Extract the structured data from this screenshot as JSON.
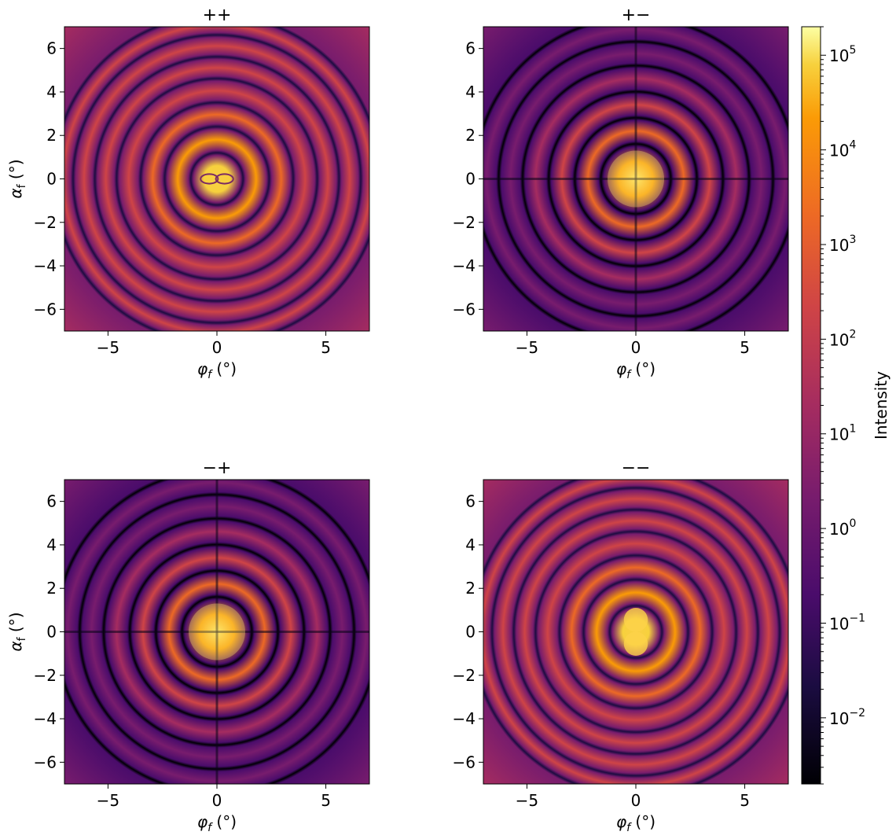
{
  "colors": {
    "background": "#ffffff",
    "axis": "#000000",
    "colormap": "inferno"
  },
  "chart_data": [
    {
      "type": "heatmap",
      "title": "++",
      "xlabel": "φ_f (°)",
      "ylabel": "α_f (°)",
      "xlim": [
        -7,
        7
      ],
      "ylim": [
        -7,
        7
      ],
      "xticks": [
        -5,
        0,
        5
      ],
      "yticks": [
        -6,
        -4,
        -2,
        0,
        2,
        4,
        6
      ],
      "pattern": "concentric-rings",
      "center_minimum": "horizontal-figure-eight",
      "cross_nodes": false,
      "ring_node_radii_deg": [
        1.2,
        2.4,
        3.5,
        4.6,
        5.6,
        6.6,
        7.5
      ]
    },
    {
      "type": "heatmap",
      "title": "+−",
      "xlabel": "φ_f (°)",
      "ylabel": "",
      "xlim": [
        -7,
        7
      ],
      "ylim": [
        -7,
        7
      ],
      "xticks": [
        -5,
        0,
        5
      ],
      "yticks": [
        -6,
        -4,
        -2,
        0,
        2,
        4,
        6
      ],
      "pattern": "concentric-rings",
      "center_minimum": "none",
      "cross_nodes": true,
      "ring_node_radii_deg": [
        1.6,
        2.8,
        4.0,
        5.2,
        6.3,
        7.4
      ]
    },
    {
      "type": "heatmap",
      "title": "−+",
      "xlabel": "φ_f (°)",
      "ylabel": "α_f (°)",
      "xlim": [
        -7,
        7
      ],
      "ylim": [
        -7,
        7
      ],
      "xticks": [
        -5,
        0,
        5
      ],
      "yticks": [
        -6,
        -4,
        -2,
        0,
        2,
        4,
        6
      ],
      "pattern": "concentric-rings",
      "center_minimum": "none",
      "cross_nodes": true,
      "ring_node_radii_deg": [
        1.6,
        2.8,
        4.0,
        5.2,
        6.3,
        7.4
      ]
    },
    {
      "type": "heatmap",
      "title": "−−",
      "xlabel": "φ_f (°)",
      "ylabel": "",
      "xlim": [
        -7,
        7
      ],
      "ylim": [
        -7,
        7
      ],
      "xticks": [
        -5,
        0,
        5
      ],
      "yticks": [
        -6,
        -4,
        -2,
        0,
        2,
        4,
        6
      ],
      "pattern": "concentric-rings",
      "center_minimum": "vertical-figure-eight",
      "cross_nodes": false,
      "ring_node_radii_deg": [
        1.2,
        2.4,
        3.5,
        4.6,
        5.6,
        6.6,
        7.5
      ]
    }
  ],
  "colorbar": {
    "label": "Intensity",
    "scale": "log",
    "range": [
      0.002,
      200000
    ],
    "ticks": [
      {
        "base": "10",
        "exp": "5",
        "value": 100000
      },
      {
        "base": "10",
        "exp": "4",
        "value": 10000
      },
      {
        "base": "10",
        "exp": "3",
        "value": 1000
      },
      {
        "base": "10",
        "exp": "2",
        "value": 100
      },
      {
        "base": "10",
        "exp": "1",
        "value": 10
      },
      {
        "base": "10",
        "exp": "0",
        "value": 1
      },
      {
        "base": "10",
        "exp": "−1",
        "value": 0.1
      },
      {
        "base": "10",
        "exp": "−2",
        "value": 0.01
      }
    ]
  }
}
